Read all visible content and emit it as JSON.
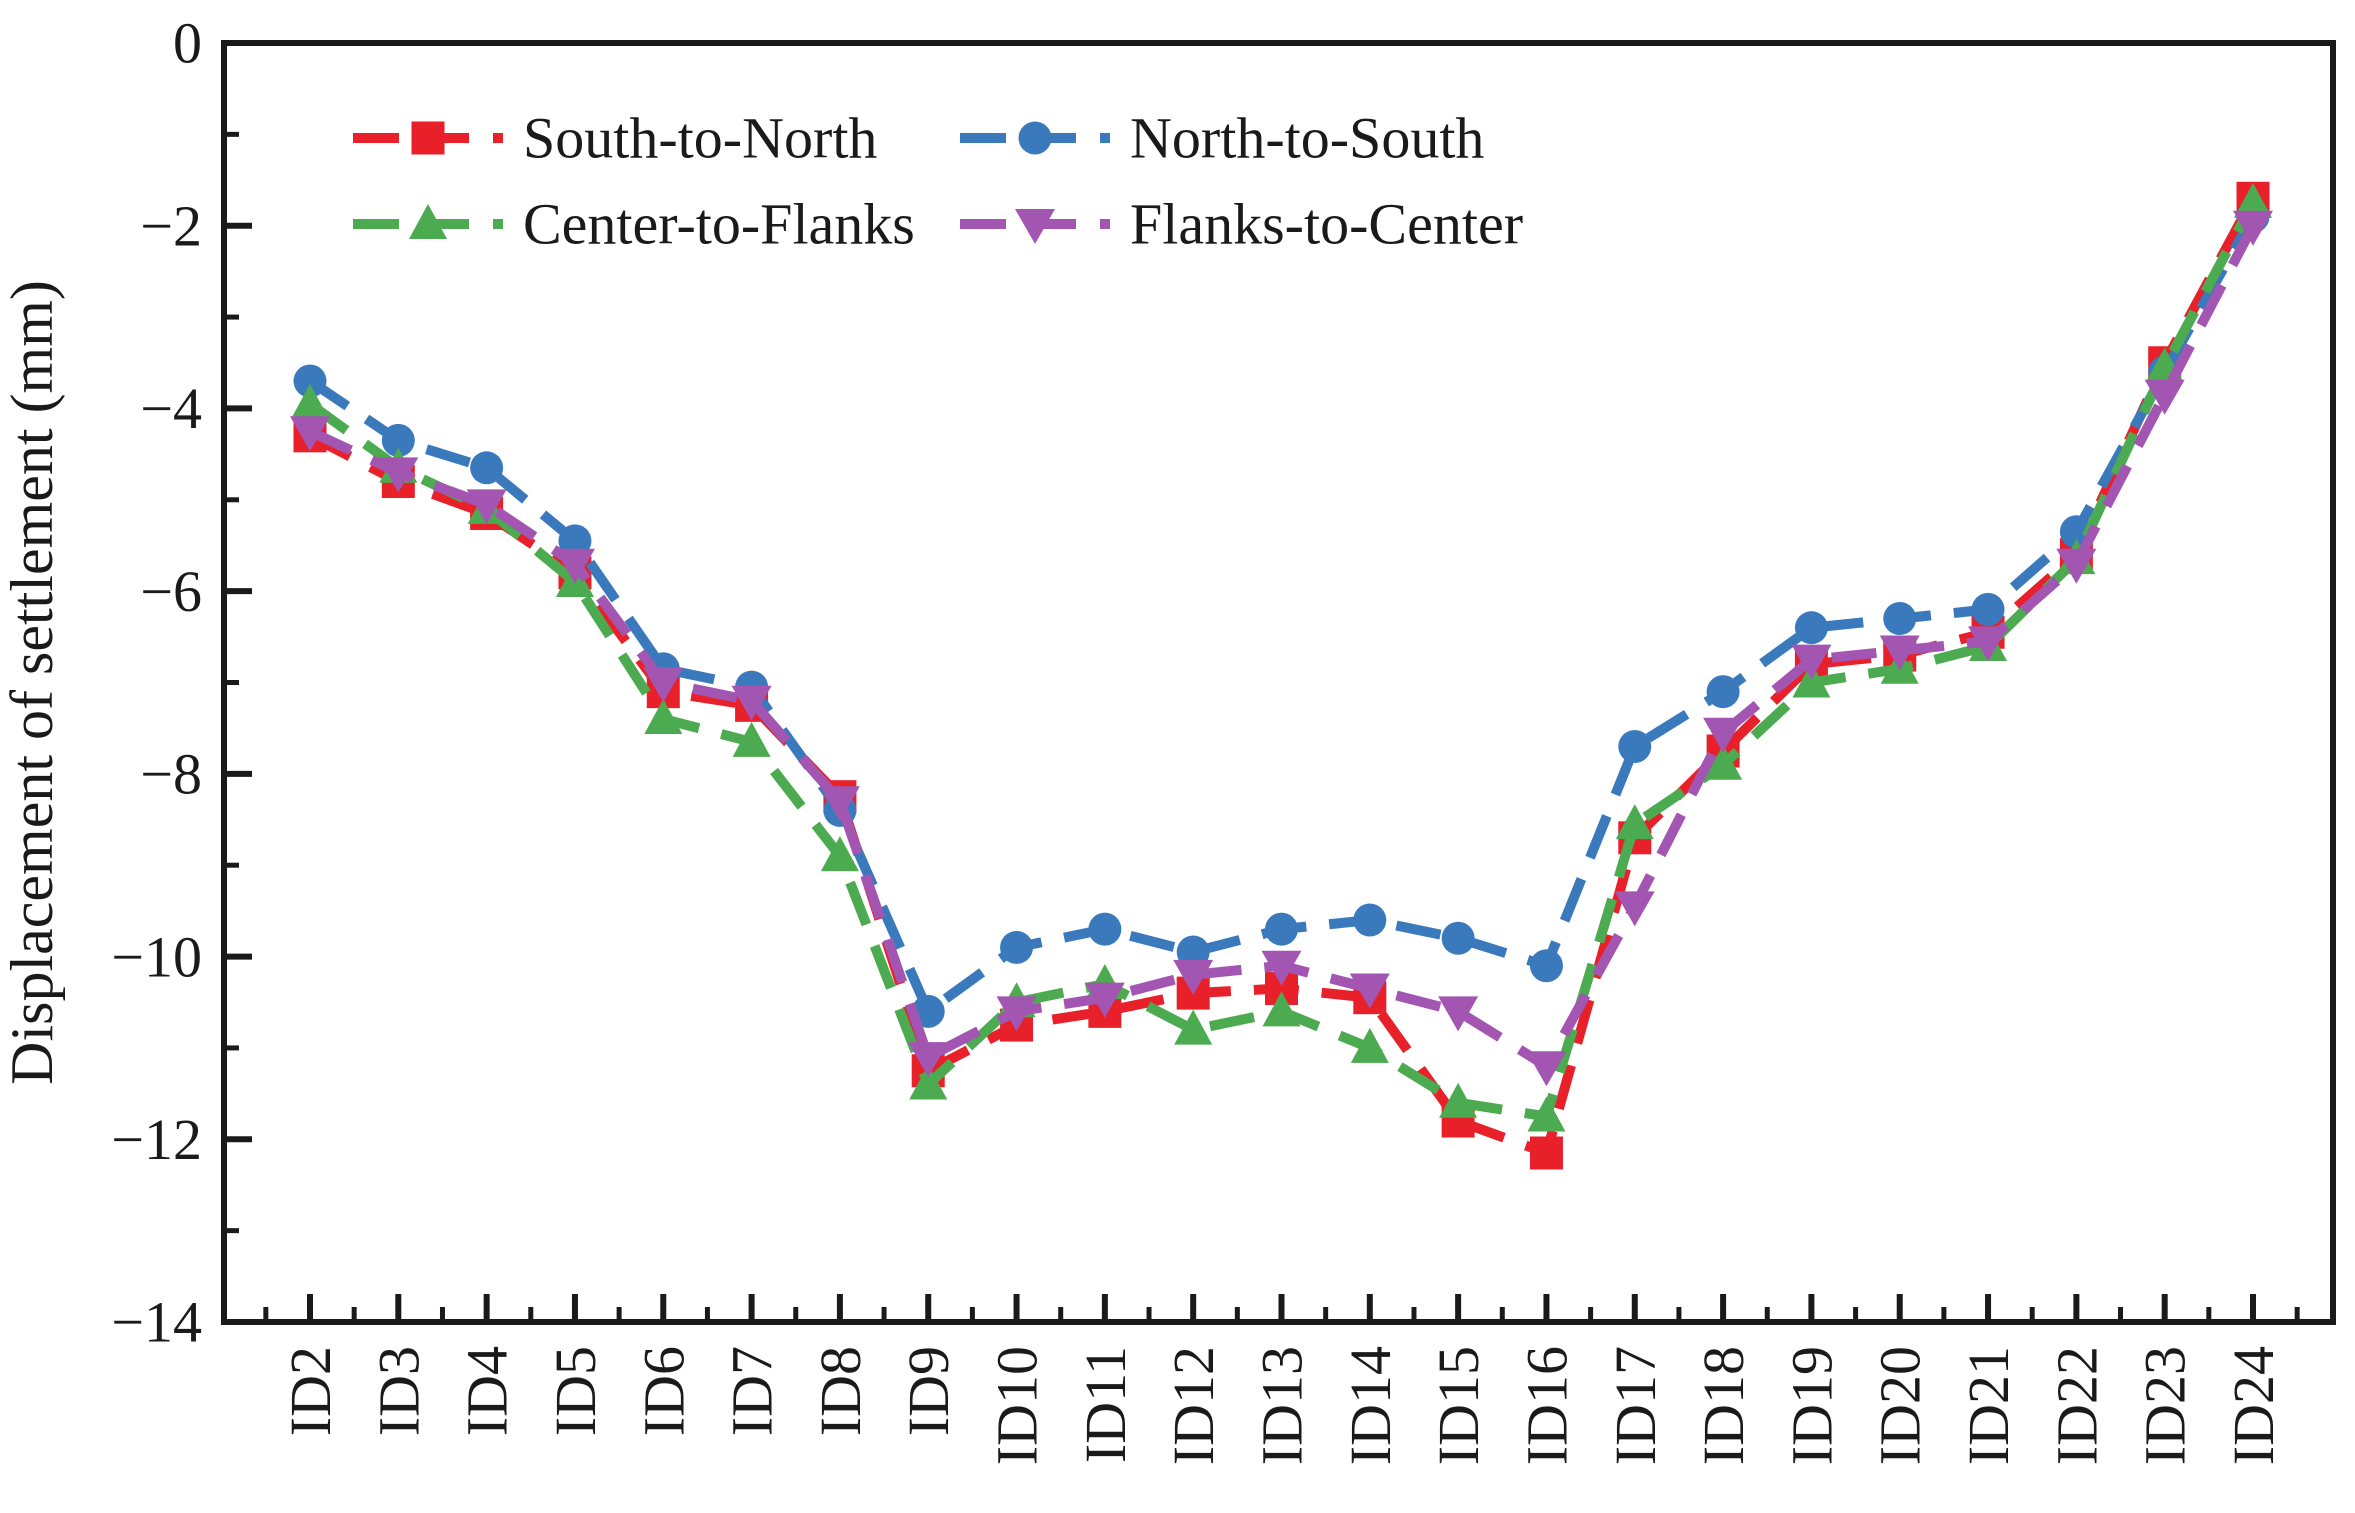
{
  "figure": {
    "background_color": "#ffffff",
    "axis_color": "#1a1a1a"
  },
  "chart_data": {
    "type": "line",
    "title": "",
    "xlabel": "",
    "ylabel": "Displacement of settlement (mm)",
    "ylim": [
      -14,
      0
    ],
    "grid": false,
    "legend_position": "inside-top-left",
    "ytick_major_values": [
      0,
      -2,
      -4,
      -6,
      -8,
      -10,
      -12,
      -14
    ],
    "ytick_major_labels": [
      "0",
      "−2",
      "−4",
      "−6",
      "−8",
      "−10",
      "−12",
      "−14"
    ],
    "ytick_minor_values": [
      -1,
      -3,
      -5,
      -7,
      -9,
      -11,
      -13
    ],
    "categories": [
      "ID2",
      "ID3",
      "ID4",
      "ID5",
      "ID6",
      "ID7",
      "ID8",
      "ID9",
      "ID10",
      "ID11",
      "ID12",
      "ID13",
      "ID14",
      "ID15",
      "ID16",
      "ID17",
      "ID18",
      "ID19",
      "ID20",
      "ID21",
      "ID22",
      "ID23",
      "ID24"
    ],
    "series": [
      {
        "name": "South-to-North",
        "color": "#e8202a",
        "marker": "square",
        "line_style": "dashed",
        "values": [
          -4.3,
          -4.8,
          -5.15,
          -5.8,
          -7.1,
          -7.25,
          -8.25,
          -11.25,
          -10.75,
          -10.6,
          -10.4,
          -10.35,
          -10.45,
          -11.8,
          -12.15,
          -8.7,
          -7.75,
          -6.8,
          -6.7,
          -6.45,
          -5.6,
          -3.5,
          -1.7
        ]
      },
      {
        "name": "North-to-South",
        "color": "#3a7abc",
        "marker": "circle",
        "line_style": "dashed",
        "values": [
          -3.7,
          -4.35,
          -4.65,
          -5.45,
          -6.85,
          -7.05,
          -8.4,
          -10.6,
          -9.9,
          -9.7,
          -9.95,
          -9.7,
          -9.6,
          -9.8,
          -10.1,
          -7.7,
          -7.1,
          -6.4,
          -6.3,
          -6.2,
          -5.35,
          -3.6,
          -1.9
        ]
      },
      {
        "name": "Center-to-Flanks",
        "color": "#4cab50",
        "marker": "triangle-up",
        "line_style": "dashed",
        "values": [
          -3.95,
          -4.65,
          -5.1,
          -5.9,
          -7.4,
          -7.65,
          -8.9,
          -11.4,
          -10.5,
          -10.3,
          -10.8,
          -10.6,
          -11.0,
          -11.6,
          -11.75,
          -8.55,
          -7.9,
          -7.0,
          -6.85,
          -6.6,
          -5.65,
          -3.55,
          -1.75
        ]
      },
      {
        "name": "Flanks-to-Center",
        "color": "#a256b2",
        "marker": "triangle-down",
        "line_style": "dashed",
        "values": [
          -4.25,
          -4.7,
          -5.05,
          -5.7,
          -7.0,
          -7.2,
          -8.3,
          -11.1,
          -10.6,
          -10.45,
          -10.2,
          -10.1,
          -10.35,
          -10.6,
          -11.2,
          -9.45,
          -7.55,
          -6.75,
          -6.65,
          -6.55,
          -5.7,
          -3.85,
          -2.0
        ]
      }
    ]
  }
}
